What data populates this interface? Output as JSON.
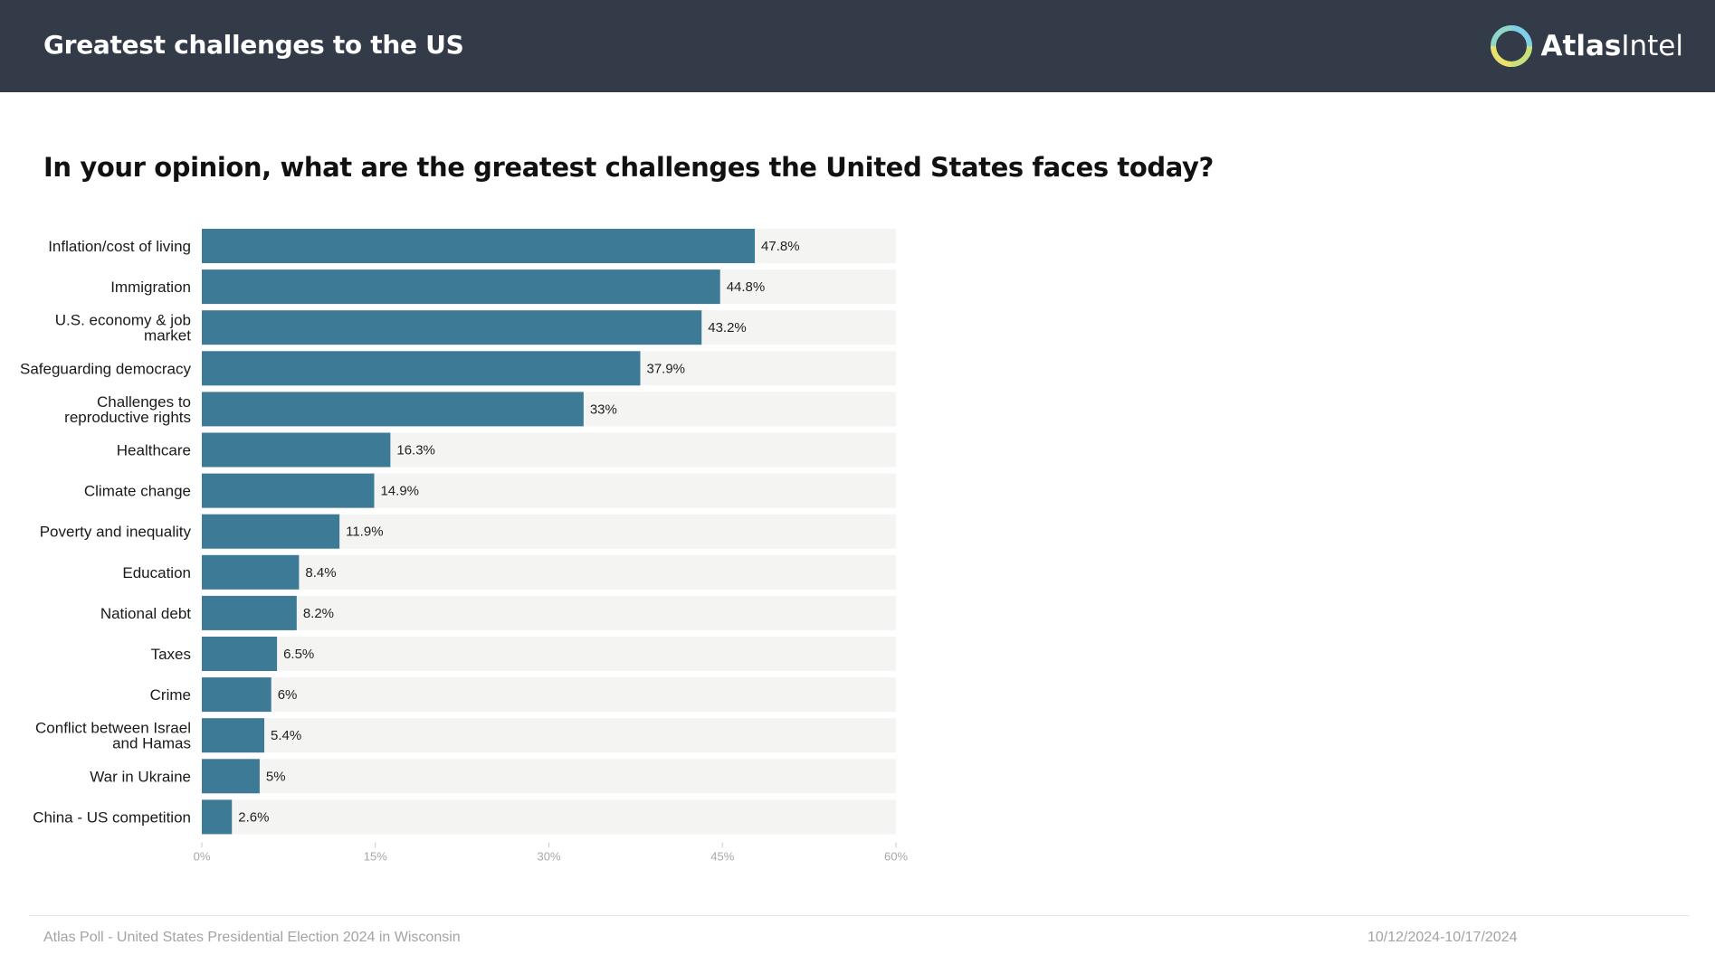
{
  "header": {
    "title": "Greatest challenges to the US",
    "brand_bold": "Atlas",
    "brand_light": "Intel"
  },
  "question": "In your opinion, what are the greatest challenges the United States faces today?",
  "colors": {
    "header_bg": "#333a48",
    "bar": "#3c7a95",
    "track": "#f4f4f2",
    "axis_text": "#a8a8a8"
  },
  "chart_data": {
    "type": "bar",
    "orientation": "horizontal",
    "title": "In your opinion, what are the greatest challenges the United States faces today?",
    "categories": [
      "Inflation/cost of living",
      "Immigration",
      "U.S. economy & job market",
      "Safeguarding democracy",
      "Challenges to reproductive rights",
      "Healthcare",
      "Climate change",
      "Poverty and inequality",
      "Education",
      "National debt",
      "Taxes",
      "Crime",
      "Conflict between Israel and Hamas",
      "War in Ukraine",
      "China - US competition"
    ],
    "category_lines": [
      [
        "Inflation/cost of living"
      ],
      [
        "Immigration"
      ],
      [
        "U.S. economy & job",
        "market"
      ],
      [
        "Safeguarding democracy"
      ],
      [
        "Challenges to",
        "reproductive rights"
      ],
      [
        "Healthcare"
      ],
      [
        "Climate change"
      ],
      [
        "Poverty and inequality"
      ],
      [
        "Education"
      ],
      [
        "National debt"
      ],
      [
        "Taxes"
      ],
      [
        "Crime"
      ],
      [
        "Conflict between Israel",
        "and Hamas"
      ],
      [
        "War in Ukraine"
      ],
      [
        "China - US competition"
      ]
    ],
    "values": [
      47.8,
      44.8,
      43.2,
      37.9,
      33,
      16.3,
      14.9,
      11.9,
      8.4,
      8.2,
      6.5,
      6,
      5.4,
      5,
      2.6
    ],
    "value_labels": [
      "47.8%",
      "44.8%",
      "43.2%",
      "37.9%",
      "33%",
      "16.3%",
      "14.9%",
      "11.9%",
      "8.4%",
      "8.2%",
      "6.5%",
      "6%",
      "5.4%",
      "5%",
      "2.6%"
    ],
    "xlim": [
      0,
      60
    ],
    "xticks": [
      0,
      15,
      30,
      45,
      60
    ],
    "xtick_labels": [
      "0%",
      "15%",
      "30%",
      "45%",
      "60%"
    ],
    "xlabel": "",
    "ylabel": ""
  },
  "footer": {
    "source": "Atlas Poll - United States Presidential Election 2024 in Wisconsin",
    "dates": "10/12/2024-10/17/2024"
  }
}
